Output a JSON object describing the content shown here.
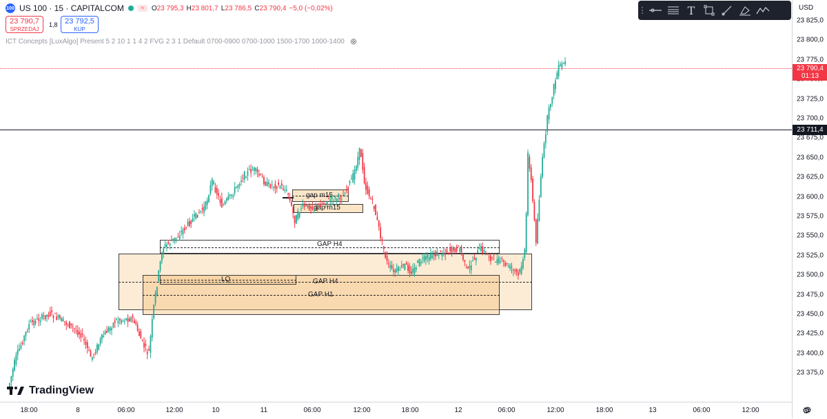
{
  "header": {
    "symbol_badge": "100",
    "title": "US 100 · 15 · CAPITALCOM",
    "ohlc": [
      {
        "k": "O",
        "v": "23 795,3"
      },
      {
        "k": "H",
        "v": "23 801,7"
      },
      {
        "k": "L",
        "v": "23 786,5"
      },
      {
        "k": "C",
        "v": "23 790,4"
      },
      {
        "k": "",
        "v": "−5,0 (−0,02%)"
      }
    ],
    "sell_price": "23 790,7",
    "sell_label": "SPRZEDAJ",
    "spread": "1,8",
    "buy_price": "23 792,5",
    "buy_label": "KUP",
    "indicator": "ICT Concepts [LuxAlgo] Present 5 2 10 1 1 4 2 FVG 2 3 1 Default 0700-0900 0700-1000 1500-1700 1000-1400"
  },
  "toolbar": {
    "tools": [
      "grip-icon",
      "line-tool-icon",
      "fib-tool-icon",
      "text-tool-icon",
      "rectangle-tool-icon",
      "brush-tool-icon",
      "highlighter-tool-icon",
      "pattern-tool-icon"
    ]
  },
  "price_axis": {
    "currency": "USD",
    "labels": [
      "23 825,0",
      "23 800,0",
      "23 775,0",
      "23 750,0",
      "23 725,0",
      "23 700,0",
      "23 675,0",
      "23 650,0",
      "23 625,0",
      "23 600,0",
      "23 575,0",
      "23 550,0",
      "23 525,0",
      "23 500,0",
      "23 475,0",
      "23 450,0",
      "23 425,0",
      "23 400,0",
      "23 375,0"
    ],
    "current_price": "23 790,4",
    "countdown": "01:13",
    "crosshair_price": "23 711,4"
  },
  "time_axis": {
    "labels": [
      "18:00",
      "8",
      "06:00",
      "12:00",
      "10",
      "11",
      "06:00",
      "12:00",
      "18:00",
      "12",
      "06:00",
      "12:00",
      "18:00",
      "13",
      "06:00",
      "12:00"
    ]
  },
  "zones": {
    "gap_m15_a": "gap m15",
    "gap_m15_b": "gap m15",
    "gap_h4_upper": "GAP H4",
    "lq": "LQ",
    "gap_h4_lower": "GAP H4",
    "gap_h1": "GAP H1"
  },
  "brand": {
    "logo_text": "TradingView"
  },
  "colors": {
    "up": "#22ab94",
    "down": "#f23645",
    "zone_fill": "#f9dcb4",
    "toolbar_bg": "#1e222d"
  }
}
